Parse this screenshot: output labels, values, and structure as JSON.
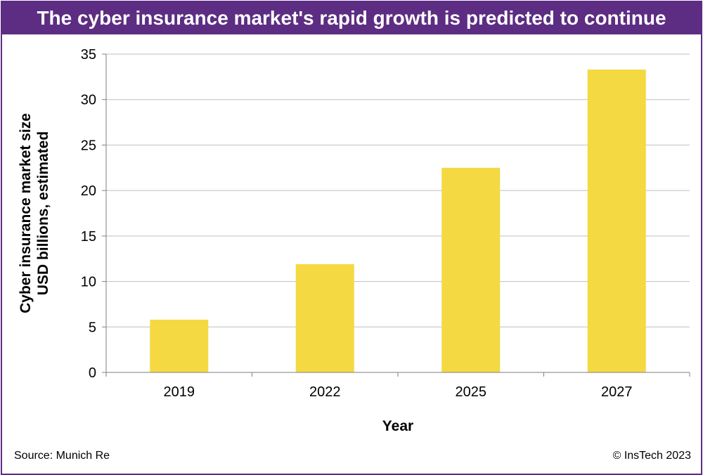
{
  "header": {
    "title": "The cyber insurance market's rapid growth is predicted to continue"
  },
  "footer": {
    "source": "Source: Munich Re",
    "copyright": "© InsTech 2023"
  },
  "colors": {
    "accent": "#5c2d82",
    "bar": "#f4d942",
    "gridline": "#bfbfbf",
    "axis": "#7f7f7f"
  },
  "chart_data": {
    "type": "bar",
    "title": "The cyber insurance market's rapid growth is predicted to continue",
    "categories": [
      "2019",
      "2022",
      "2025",
      "2027"
    ],
    "values": [
      5.8,
      11.9,
      22.5,
      33.3
    ],
    "xlabel": "Year",
    "ylabel_lines": [
      "Cyber insurance market size",
      "USD billions, estimated"
    ],
    "ylim": [
      0,
      35
    ],
    "yticks": [
      0,
      5,
      10,
      15,
      20,
      25,
      30,
      35
    ],
    "grid": true,
    "legend": "none"
  }
}
